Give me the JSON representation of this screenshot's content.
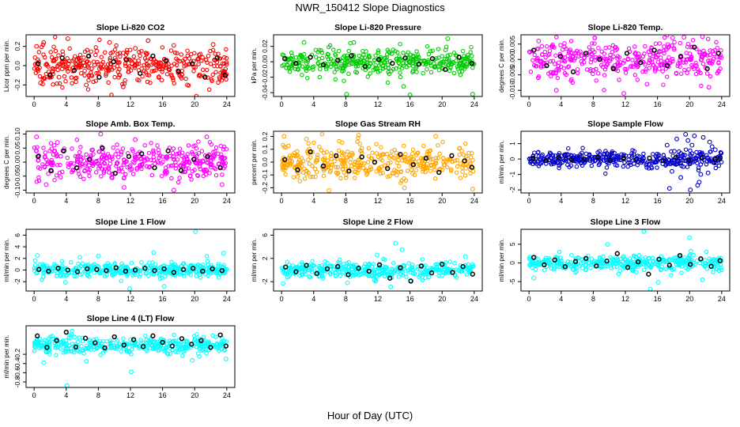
{
  "page": {
    "title": "NWR_150412  Slope Diagnostics",
    "xlabel": "Hour of Day (UTC)"
  },
  "chart_data": [
    {
      "type": "scatter",
      "title": "Slope Li-820 CO2",
      "xlabel": "",
      "ylabel": "Licor ppm per min.",
      "xlim": [
        -1,
        25
      ],
      "ylim": [
        -0.32,
        0.32
      ],
      "xticks": [
        0,
        4,
        8,
        12,
        16,
        20,
        24
      ],
      "yticks": [
        -0.2,
        0,
        0.2
      ],
      "ytick_labels": [
        "-0.2",
        "0.0",
        "0.2"
      ],
      "color": "#ff0000",
      "spread": 0.12,
      "grid": false,
      "series": [
        {
          "marker": "open circle",
          "color": "#ff0000",
          "x": [
            0.3,
            0.8,
            1.2,
            2.5,
            3.1,
            4.2,
            6.5,
            7.8,
            9.4,
            11.1,
            12.6,
            14.2,
            15.9,
            17.4,
            19.1,
            20.7,
            22.3,
            23.6
          ],
          "y": [
            0.2,
            -0.18,
            0.24,
            0.05,
            -0.12,
            0.28,
            -0.2,
            0.15,
            0.24,
            -0.22,
            0.18,
            0.26,
            -0.15,
            0.21,
            -0.2,
            0.12,
            0.22,
            -0.1
          ]
        },
        {
          "marker": "open circle",
          "color": "#000000",
          "x": [
            0.5,
            2.0,
            3.5,
            5.0,
            6.8,
            8.1,
            9.9,
            11.5,
            13.2,
            14.8,
            16.4,
            18.0,
            19.7,
            21.3,
            22.8,
            23.8
          ],
          "y": [
            0.02,
            -0.1,
            0.08,
            -0.05,
            0.1,
            -0.12,
            0.04,
            0.06,
            -0.08,
            0.1,
            0.05,
            -0.06,
            0.02,
            -0.12,
            0.08,
            -0.1
          ]
        }
      ]
    },
    {
      "type": "scatter",
      "title": "Slope Li-820 Pressure",
      "xlabel": "",
      "ylabel": "kPa per min.",
      "xlim": [
        -1,
        25
      ],
      "ylim": [
        -0.045,
        0.035
      ],
      "xticks": [
        0,
        4,
        8,
        12,
        16,
        20,
        24
      ],
      "yticks": [
        -0.04,
        -0.02,
        0,
        0.02
      ],
      "ytick_labels": [
        "-0.04",
        "-0.02",
        "0.00",
        "0.02"
      ],
      "color": "#00cc00",
      "spread": 0.012,
      "grid": false,
      "series": [
        {
          "marker": "open circle",
          "color": "#00cc00",
          "x": [
            2.8,
            8.1,
            9.0,
            15.2,
            16.0,
            20.7,
            23.8
          ],
          "y": [
            0.025,
            -0.042,
            0.025,
            -0.032,
            -0.043,
            0.03,
            -0.042
          ]
        },
        {
          "marker": "open circle",
          "color": "#000000",
          "x": [
            0.4,
            1.8,
            3.6,
            5.2,
            7.0,
            8.7,
            10.4,
            12.1,
            13.8,
            15.4,
            17.1,
            18.8,
            20.4,
            22.1,
            23.7
          ],
          "y": [
            0.004,
            -0.002,
            0.006,
            -0.004,
            0.002,
            0.008,
            -0.006,
            0.003,
            -0.002,
            0.005,
            -0.003,
            0.004,
            -0.01,
            0.006,
            -0.002
          ]
        }
      ]
    },
    {
      "type": "scatter",
      "title": "Slope Li-820 Temp.",
      "xlabel": "",
      "ylabel": "degrees C per min.",
      "xlim": [
        -1,
        25
      ],
      "ylim": [
        -0.012,
        0.008
      ],
      "xticks": [
        0,
        4,
        8,
        12,
        16,
        20,
        24
      ],
      "yticks": [
        -0.01,
        -0.005,
        0,
        0.005
      ],
      "ytick_labels": [
        "-0.010",
        "-0.005",
        "0.000",
        "0.005"
      ],
      "color": "#ff00ff",
      "spread": 0.004,
      "grid": false,
      "series": [
        {
          "marker": "open circle",
          "color": "#ff00ff",
          "x": [
            1.2,
            3.4,
            8.2,
            11.8,
            14.7,
            17.9,
            19.3,
            21.6,
            22.4
          ],
          "y": [
            0.006,
            -0.01,
            0.007,
            -0.011,
            -0.008,
            0.007,
            0.0072,
            0.0074,
            -0.009
          ]
        },
        {
          "marker": "open circle",
          "color": "#000000",
          "x": [
            0.6,
            2.2,
            3.9,
            5.5,
            7.1,
            8.8,
            10.5,
            12.2,
            13.9,
            15.6,
            17.2,
            18.9,
            20.6,
            22.2,
            23.6
          ],
          "y": [
            0.003,
            -0.002,
            0.001,
            -0.004,
            0.002,
            0.0,
            -0.003,
            0.002,
            -0.001,
            0.003,
            -0.002,
            0.001,
            0.004,
            -0.003,
            0.002
          ]
        }
      ]
    },
    {
      "type": "scatter",
      "title": "Slope Amb. Box Temp.",
      "xlabel": "",
      "ylabel": "degrees C per min.",
      "xlim": [
        -1,
        25
      ],
      "ylim": [
        -0.11,
        0.11
      ],
      "xticks": [
        0,
        4,
        8,
        12,
        16,
        20,
        24
      ],
      "yticks": [
        -0.1,
        -0.05,
        0,
        0.05,
        0.1
      ],
      "ytick_labels": [
        "-0.10",
        "-0.05",
        "0.00",
        "0.05",
        "0.10"
      ],
      "color": "#ff00ff",
      "spread": 0.04,
      "grid": false,
      "series": [
        {
          "marker": "open circle",
          "color": "#ff00ff",
          "x": [
            0.3,
            1.5,
            2.9,
            8.3,
            11.2,
            12.6,
            17.4,
            21.5,
            23.4
          ],
          "y": [
            0.09,
            -0.08,
            0.07,
            0.1,
            -0.09,
            0.08,
            -0.1,
            0.09,
            -0.08
          ]
        },
        {
          "marker": "open circle",
          "color": "#000000",
          "x": [
            0.5,
            2.1,
            3.7,
            5.3,
            6.9,
            8.5,
            10.1,
            11.8,
            13.4,
            15.0,
            16.7,
            18.3,
            19.9,
            21.6,
            23.2
          ],
          "y": [
            0.02,
            -0.03,
            0.04,
            -0.02,
            0.01,
            0.05,
            -0.04,
            0.02,
            0.03,
            -0.02,
            0.04,
            -0.03,
            0.01,
            0.02,
            -0.02
          ]
        }
      ]
    },
    {
      "type": "scatter",
      "title": "Slope Gas Stream RH",
      "xlabel": "",
      "ylabel": "percent per min.",
      "xlim": [
        -1,
        25
      ],
      "ylim": [
        -0.24,
        0.24
      ],
      "xticks": [
        0,
        4,
        8,
        12,
        16,
        20,
        24
      ],
      "yticks": [
        -0.2,
        -0.1,
        0,
        0.1,
        0.2
      ],
      "ytick_labels": [
        "-0.2",
        "-0.1",
        "0.0",
        "0.1",
        "0.2"
      ],
      "color": "#ffa500",
      "spread": 0.09,
      "grid": false,
      "series": [
        {
          "marker": "open circle",
          "color": "#ffa500",
          "x": [
            0.3,
            3.1,
            5.9,
            9.6,
            15.3,
            19.2,
            23.8
          ],
          "y": [
            0.2,
            0.18,
            -0.22,
            0.21,
            -0.2,
            0.2,
            -0.21
          ]
        },
        {
          "marker": "open circle",
          "color": "#000000",
          "x": [
            0.4,
            2.0,
            3.6,
            5.2,
            6.8,
            8.4,
            10.0,
            11.6,
            13.2,
            14.8,
            16.4,
            18.0,
            19.6,
            21.2,
            22.8,
            23.7
          ],
          "y": [
            0.02,
            -0.06,
            0.08,
            -0.03,
            0.05,
            -0.07,
            0.04,
            0.0,
            -0.05,
            0.06,
            -0.02,
            0.03,
            -0.08,
            0.05,
            0.01,
            -0.04
          ]
        }
      ]
    },
    {
      "type": "scatter",
      "title": "Slope Sample Flow",
      "xlabel": "",
      "ylabel": "ml/min per min.",
      "xlim": [
        -1,
        25
      ],
      "ylim": [
        -2.2,
        1.8
      ],
      "xticks": [
        0,
        4,
        8,
        12,
        16,
        20,
        24
      ],
      "yticks": [
        -2,
        -1,
        0,
        1
      ],
      "ytick_labels": [
        "-2",
        "-1",
        "0",
        "1"
      ],
      "color": "#0000cc",
      "spread": 0.35,
      "grid": false,
      "series": [
        {
          "marker": "open circle",
          "color": "#0000cc",
          "x": [
            17.2,
            17.8,
            18.4,
            18.9,
            19.5,
            20.1,
            20.6,
            21.2,
            21.7,
            22.3,
            22.8,
            18.1,
            19.2,
            20.3,
            21.4,
            22.5,
            17.5,
            19.8,
            21.0,
            23.2
          ],
          "y": [
            0.9,
            -0.8,
            1.3,
            -1.2,
            1.6,
            -2.0,
            1.5,
            -1.5,
            1.4,
            -0.9,
            0.8,
            0.5,
            -0.5,
            0.9,
            -1.0,
            1.1,
            -1.9,
            1.2,
            -1.7,
            0.6
          ]
        },
        {
          "marker": "open circle",
          "color": "#000000",
          "x": [
            0.5,
            2.1,
            3.7,
            5.3,
            6.9,
            8.5,
            10.1,
            11.8,
            13.4,
            15.0,
            16.7,
            18.3,
            19.9,
            21.6,
            23.2,
            23.8
          ],
          "y": [
            0.05,
            -0.1,
            0.1,
            -0.05,
            0.0,
            0.12,
            -0.08,
            0.04,
            -0.03,
            0.06,
            -0.1,
            0.1,
            -0.05,
            0.08,
            -0.02,
            0.05
          ]
        }
      ]
    },
    {
      "type": "scatter",
      "title": "Slope Line 1 Flow",
      "xlabel": "",
      "ylabel": "ml/min per min.",
      "xlim": [
        -1,
        25
      ],
      "ylim": [
        -3.6,
        7
      ],
      "xticks": [
        0,
        4,
        8,
        12,
        16,
        20,
        24
      ],
      "yticks": [
        -2,
        0,
        2,
        4,
        6
      ],
      "ytick_labels": [
        "-2",
        "0",
        "2",
        "4",
        "6"
      ],
      "color": "#00ffff",
      "spread": 0.8,
      "grid": false,
      "series": [
        {
          "marker": "open circle",
          "color": "#00ffff",
          "x": [
            20.1,
            14.9,
            11.9,
            0.4,
            16.2,
            23.6,
            8.0,
            3.9
          ],
          "y": [
            6.6,
            3.0,
            -3.2,
            2.5,
            -2.8,
            2.9,
            2.4,
            -2.1
          ]
        },
        {
          "marker": "open circle",
          "color": "#000000",
          "x": [
            0.6,
            1.8,
            3.0,
            4.2,
            5.4,
            6.6,
            7.8,
            9.0,
            10.2,
            11.4,
            12.6,
            13.8,
            15.0,
            16.2,
            17.4,
            18.6,
            19.8,
            21.0,
            22.2,
            23.4
          ],
          "y": [
            0.1,
            -0.2,
            0.3,
            0.0,
            -0.3,
            0.2,
            0.1,
            -0.1,
            0.4,
            -0.2,
            0.0,
            0.3,
            -0.1,
            0.2,
            -0.4,
            0.1,
            0.3,
            -0.2,
            0.2,
            -0.1
          ]
        }
      ]
    },
    {
      "type": "scatter",
      "title": "Slope Line 2 Flow",
      "xlabel": "",
      "ylabel": "ml/min per min.",
      "xlim": [
        -1,
        25
      ],
      "ylim": [
        -3.6,
        7
      ],
      "xticks": [
        0,
        4,
        8,
        12,
        16,
        20,
        24
      ],
      "yticks": [
        -2,
        2,
        6
      ],
      "ytick_labels": [
        "-2",
        "2",
        "6"
      ],
      "color": "#00ffff",
      "spread": 0.85,
      "grid": false,
      "series": [
        {
          "marker": "open circle",
          "color": "#00ffff",
          "x": [
            14.2,
            15.0,
            13.6,
            0.2,
            16.1,
            11.9,
            8.2,
            22.9
          ],
          "y": [
            4.6,
            3.5,
            -2.9,
            -2.3,
            -1.8,
            2.6,
            -2.2,
            2.3
          ]
        },
        {
          "marker": "open circle",
          "color": "#000000",
          "x": [
            0.5,
            1.8,
            3.1,
            4.4,
            5.7,
            7.0,
            8.3,
            9.6,
            10.9,
            12.2,
            13.5,
            14.8,
            16.1,
            17.4,
            18.7,
            20.0,
            21.3,
            22.6,
            23.8
          ],
          "y": [
            0.5,
            -0.3,
            0.8,
            -0.6,
            0.2,
            0.6,
            -0.8,
            0.3,
            -0.2,
            0.9,
            -1.4,
            0.4,
            -1.9,
            0.7,
            -0.5,
            1.0,
            -0.4,
            0.6,
            -0.7
          ]
        }
      ]
    },
    {
      "type": "scatter",
      "title": "Slope Line 3 Flow",
      "xlabel": "",
      "ylabel": "ml/min per min.",
      "xlim": [
        -1,
        25
      ],
      "ylim": [
        -7.5,
        9
      ],
      "xticks": [
        0,
        4,
        8,
        12,
        16,
        20,
        24
      ],
      "yticks": [
        -5,
        0,
        5
      ],
      "ytick_labels": [
        "-5",
        "0",
        "5"
      ],
      "color": "#00ffff",
      "spread": 1.4,
      "grid": false,
      "series": [
        {
          "marker": "open circle",
          "color": "#00ffff",
          "x": [
            14.3,
            15.1,
            20.0,
            0.6,
            16.1,
            9.8,
            21.6
          ],
          "y": [
            8.4,
            -7.0,
            6.8,
            -4.0,
            -5.2,
            5.0,
            -4.5
          ]
        },
        {
          "marker": "open circle",
          "color": "#000000",
          "x": [
            0.6,
            1.9,
            3.2,
            4.5,
            5.8,
            7.1,
            8.4,
            9.7,
            11.0,
            12.3,
            13.6,
            14.9,
            16.2,
            17.5,
            18.8,
            20.1,
            21.4,
            22.7,
            23.8
          ],
          "y": [
            1.5,
            -0.5,
            0.8,
            -1.0,
            0.4,
            1.2,
            -0.8,
            0.5,
            2.5,
            -1.2,
            0.3,
            -3.0,
            1.0,
            -0.6,
            2.0,
            -0.4,
            1.1,
            -0.9,
            0.6
          ]
        }
      ]
    },
    {
      "type": "scatter",
      "title": "Slope Line 4 (LT) Flow",
      "xlabel": "",
      "ylabel": "ml/min per min.",
      "xlim": [
        -1,
        25
      ],
      "ylim": [
        -0.92,
        0.42
      ],
      "xticks": [
        0,
        4,
        8,
        12,
        16,
        20,
        24
      ],
      "yticks": [
        -0.8,
        -0.6,
        -0.4,
        -0.2
      ],
      "ytick_labels": [
        "-0.8",
        "-0.6",
        "-0.4",
        "-0.2"
      ],
      "color": "#00ffff",
      "spread": 0.12,
      "grid": false,
      "series": [
        {
          "marker": "open circle",
          "color": "#00ffff",
          "x": [
            4.1,
            12.1,
            1.2,
            6.5,
            23.9,
            19.7
          ],
          "y": [
            -0.88,
            -0.58,
            -0.38,
            -0.35,
            -0.3,
            -0.33
          ]
        },
        {
          "marker": "open circle",
          "color": "#000000",
          "x": [
            0.4,
            1.6,
            2.8,
            4.0,
            5.2,
            6.4,
            7.6,
            8.8,
            10.0,
            11.2,
            12.4,
            13.6,
            14.8,
            16.0,
            17.2,
            18.4,
            19.6,
            20.8,
            22.0,
            23.2,
            23.9
          ],
          "y": [
            0.2,
            -0.05,
            0.1,
            0.28,
            -0.04,
            0.15,
            0.05,
            -0.06,
            0.18,
            0.0,
            0.12,
            -0.03,
            0.2,
            0.06,
            -0.02,
            0.14,
            0.02,
            0.1,
            -0.05,
            0.22,
            -0.02
          ]
        }
      ]
    }
  ]
}
